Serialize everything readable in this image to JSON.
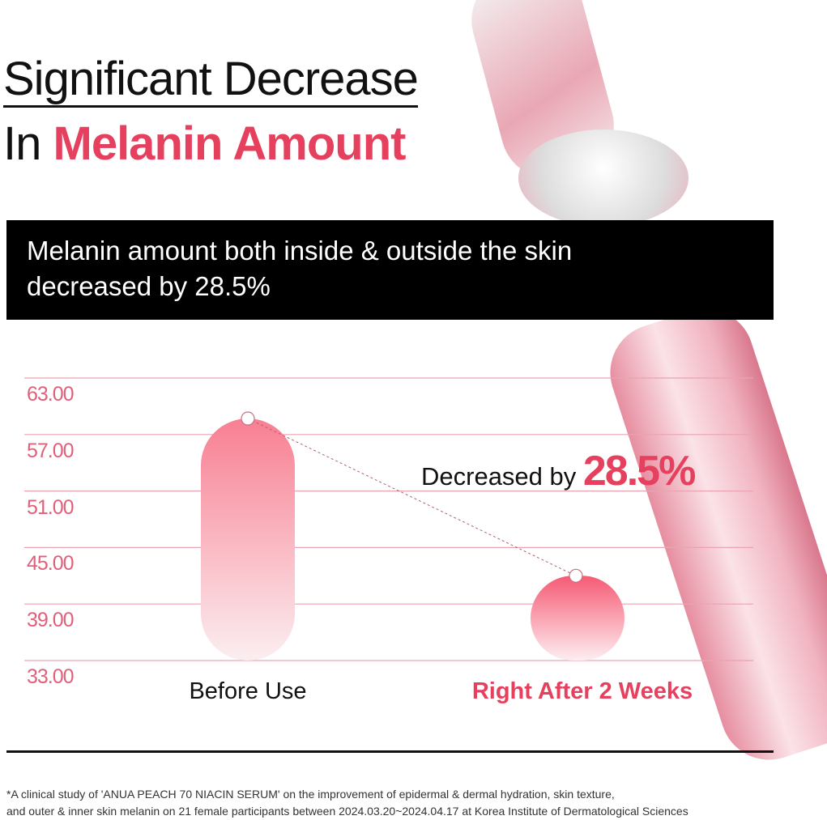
{
  "title_line1": "Significant Decrease",
  "title_line2_prefix": "In ",
  "title_line2_highlight": "Melanin Amount",
  "banner": {
    "line1": "Melanin amount both inside & outside the skin",
    "line2": "decreased by 28.5%"
  },
  "annotation": {
    "prefix": "Decreased by ",
    "value": "28.5%"
  },
  "footnote": {
    "line1": "*A clinical study of 'ANUA PEACH 70 NIACIN SERUM' on the improvement of epidermal & dermal hydration, skin texture,",
    "line2": "and outer & inner skin melanin on 21 female participants between 2024.03.20~2024.04.17 at Korea Institute of Dermatological Sciences"
  },
  "colors": {
    "accent": "#e5405e",
    "axis_label": "#e0607a",
    "grid": "#eaa3b0"
  },
  "chart_data": {
    "type": "bar",
    "categories": [
      "Before Use",
      "Right After 2 Weeks"
    ],
    "values": [
      58.7,
      42.0
    ],
    "ylim": [
      33,
      63
    ],
    "yticks": [
      "63.00",
      "57.00",
      "51.00",
      "45.00",
      "39.00",
      "33.00"
    ],
    "grid": true,
    "connector": "dashed line between bar tops"
  }
}
